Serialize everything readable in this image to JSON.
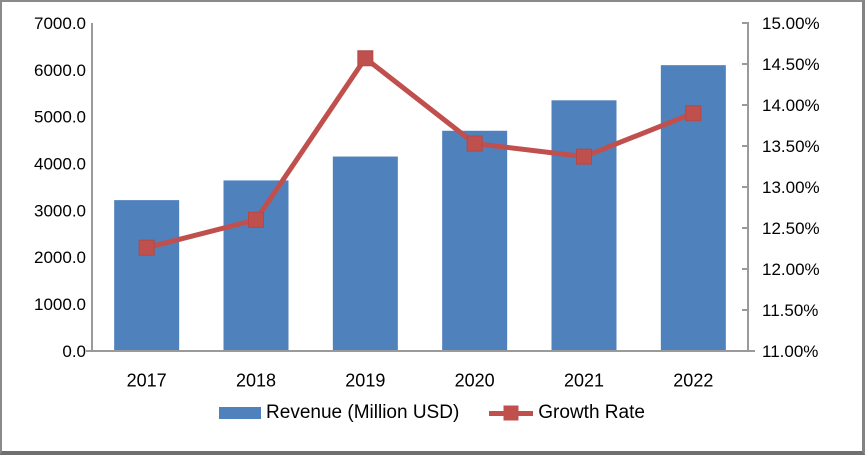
{
  "chart_data": {
    "type": "bar",
    "subtype": "combo-bar-line-dual-axis",
    "title": "",
    "categories": [
      "2017",
      "2018",
      "2019",
      "2020",
      "2021",
      "2022"
    ],
    "series": [
      {
        "name": "Revenue (Million USD)",
        "type": "bar",
        "axis": "left",
        "values": [
          3220,
          3640,
          4150,
          4700,
          5350,
          6100
        ]
      },
      {
        "name": "Growth Rate",
        "type": "line",
        "axis": "right",
        "values": [
          12.26,
          12.6,
          14.57,
          13.53,
          13.37,
          13.9
        ]
      }
    ],
    "left_axis": {
      "min": 0,
      "max": 7000,
      "step": 1000,
      "tick_labels": [
        "0.0",
        "1000.0",
        "2000.0",
        "3000.0",
        "4000.0",
        "5000.0",
        "6000.0",
        "7000.0"
      ]
    },
    "right_axis": {
      "min": 11,
      "max": 15,
      "step": 0.5,
      "tick_labels": [
        "11.00%",
        "11.50%",
        "12.00%",
        "12.50%",
        "13.00%",
        "13.50%",
        "14.00%",
        "14.50%",
        "15.00%"
      ]
    },
    "grid": false,
    "legend_position": "bottom-center"
  },
  "legend": {
    "revenue_label": "Revenue (Million USD)",
    "growth_label": "Growth Rate"
  },
  "colors": {
    "bar_fill": "#4F81BD",
    "line_stroke": "#C0504D",
    "marker_fill": "#C0504D",
    "axis_line": "#9A9A9A",
    "text": "#000000",
    "background": "#FFFFFF"
  }
}
